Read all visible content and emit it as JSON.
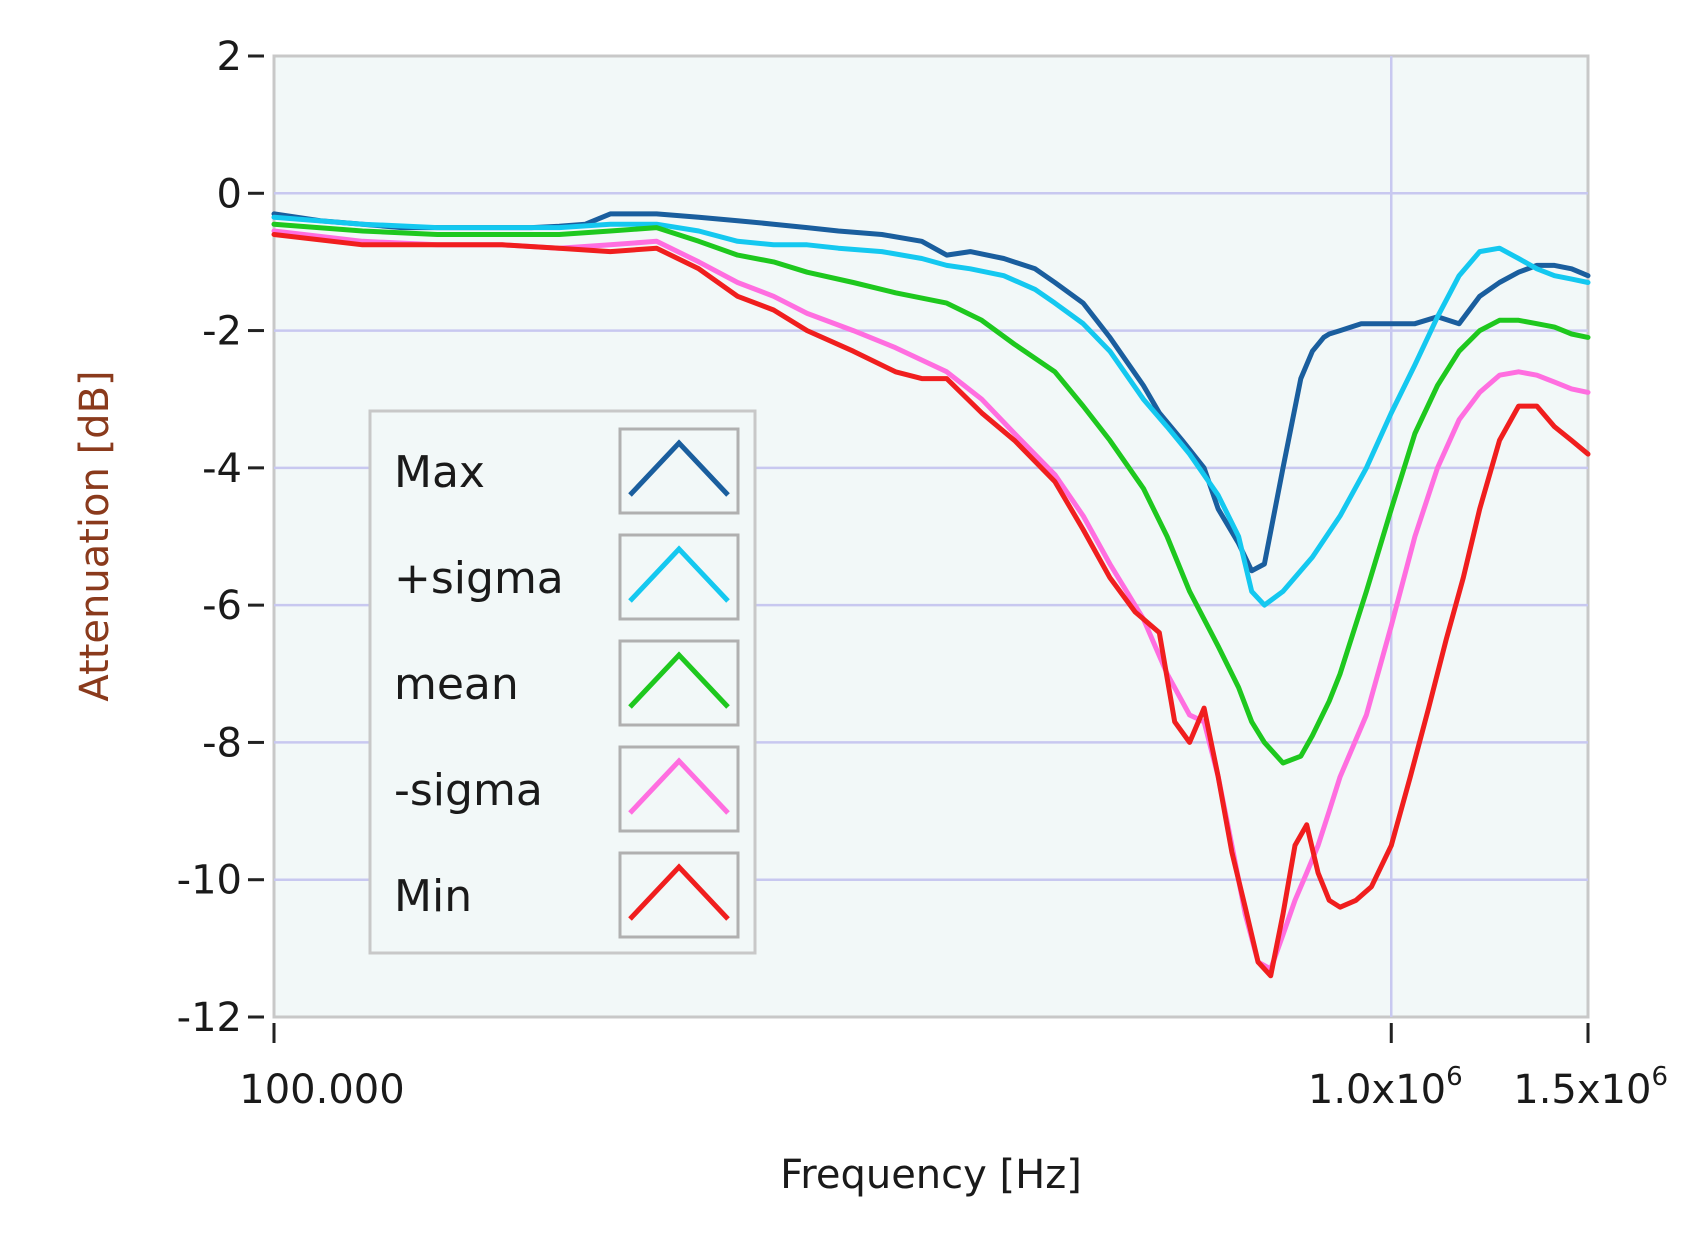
{
  "chart_data": {
    "type": "line",
    "title": "",
    "xlabel": "Frequency [Hz]",
    "ylabel": "Attenuation [dB]",
    "x_scale": "log",
    "xlim": [
      100000,
      1500000
    ],
    "ylim": [
      -12,
      2
    ],
    "x_ticks": [
      {
        "value": 100000,
        "label": "100.000",
        "base": "",
        "exp": ""
      },
      {
        "value": 1000000,
        "label": "",
        "base": "1.0x10",
        "exp": "6"
      },
      {
        "value": 1500000,
        "label": "",
        "base": "1.5x10",
        "exp": "6"
      }
    ],
    "y_ticks": [
      {
        "value": 2,
        "label": "2"
      },
      {
        "value": 0,
        "label": "0"
      },
      {
        "value": -2,
        "label": "-2"
      },
      {
        "value": -4,
        "label": "-4"
      },
      {
        "value": -6,
        "label": "-6"
      },
      {
        "value": -8,
        "label": "-8"
      },
      {
        "value": -10,
        "label": "-10"
      },
      {
        "value": -12,
        "label": "-12"
      }
    ],
    "grid": true,
    "legend_position": "left-center",
    "plot_background": "#f2f8f8",
    "grid_color": "#c8c8f0",
    "series": [
      {
        "name": "Max",
        "color": "#1a5e9e",
        "x": [
          100000,
          110000,
          120000,
          130000,
          140000,
          150000,
          160000,
          170000,
          180000,
          190000,
          200000,
          220000,
          240000,
          260000,
          280000,
          300000,
          320000,
          350000,
          380000,
          400000,
          420000,
          450000,
          480000,
          500000,
          530000,
          560000,
          600000,
          620000,
          650000,
          680000,
          700000,
          730000,
          750000,
          770000,
          800000,
          830000,
          850000,
          870000,
          880000,
          900000,
          920000,
          940000,
          960000,
          1000000,
          1050000,
          1100000,
          1150000,
          1200000,
          1250000,
          1300000,
          1350000,
          1400000,
          1450000,
          1500000
        ],
        "values": [
          -0.3,
          -0.4,
          -0.45,
          -0.5,
          -0.5,
          -0.5,
          -0.5,
          -0.5,
          -0.48,
          -0.45,
          -0.3,
          -0.3,
          -0.35,
          -0.4,
          -0.45,
          -0.5,
          -0.55,
          -0.6,
          -0.7,
          -0.9,
          -0.85,
          -0.95,
          -1.1,
          -1.3,
          -1.6,
          -2.1,
          -2.8,
          -3.2,
          -3.6,
          -4.0,
          -4.6,
          -5.1,
          -5.5,
          -5.4,
          -4.0,
          -2.7,
          -2.3,
          -2.1,
          -2.05,
          -2.0,
          -1.95,
          -1.9,
          -1.9,
          -1.9,
          -1.9,
          -1.8,
          -1.9,
          -1.5,
          -1.3,
          -1.15,
          -1.05,
          -1.05,
          -1.1,
          -1.2
        ]
      },
      {
        "name": "+sigma",
        "color": "#14c8f0",
        "x": [
          100000,
          120000,
          140000,
          160000,
          180000,
          200000,
          220000,
          240000,
          260000,
          280000,
          300000,
          320000,
          350000,
          380000,
          400000,
          420000,
          450000,
          480000,
          500000,
          530000,
          560000,
          600000,
          630000,
          660000,
          700000,
          730000,
          750000,
          770000,
          800000,
          850000,
          900000,
          950000,
          1000000,
          1050000,
          1100000,
          1150000,
          1200000,
          1250000,
          1300000,
          1350000,
          1400000,
          1450000,
          1500000
        ],
        "values": [
          -0.35,
          -0.45,
          -0.5,
          -0.5,
          -0.5,
          -0.45,
          -0.45,
          -0.55,
          -0.7,
          -0.75,
          -0.75,
          -0.8,
          -0.85,
          -0.95,
          -1.05,
          -1.1,
          -1.2,
          -1.4,
          -1.6,
          -1.9,
          -2.3,
          -3.0,
          -3.4,
          -3.8,
          -4.4,
          -5.0,
          -5.8,
          -6.0,
          -5.8,
          -5.3,
          -4.7,
          -4.0,
          -3.2,
          -2.5,
          -1.8,
          -1.2,
          -0.85,
          -0.8,
          -0.95,
          -1.1,
          -1.2,
          -1.25,
          -1.3
        ]
      },
      {
        "name": "mean",
        "color": "#1ec81e",
        "x": [
          100000,
          120000,
          140000,
          160000,
          180000,
          200000,
          220000,
          240000,
          260000,
          280000,
          300000,
          330000,
          360000,
          400000,
          430000,
          460000,
          500000,
          530000,
          560000,
          600000,
          630000,
          660000,
          700000,
          730000,
          750000,
          770000,
          800000,
          830000,
          850000,
          880000,
          900000,
          950000,
          1000000,
          1050000,
          1100000,
          1150000,
          1200000,
          1250000,
          1300000,
          1350000,
          1400000,
          1450000,
          1500000
        ],
        "values": [
          -0.45,
          -0.55,
          -0.6,
          -0.6,
          -0.6,
          -0.55,
          -0.5,
          -0.7,
          -0.9,
          -1.0,
          -1.15,
          -1.3,
          -1.45,
          -1.6,
          -1.85,
          -2.2,
          -2.6,
          -3.1,
          -3.6,
          -4.3,
          -5.0,
          -5.8,
          -6.6,
          -7.2,
          -7.7,
          -8.0,
          -8.3,
          -8.2,
          -7.9,
          -7.4,
          -7.0,
          -5.8,
          -4.6,
          -3.5,
          -2.8,
          -2.3,
          -2.0,
          -1.85,
          -1.85,
          -1.9,
          -1.95,
          -2.05,
          -2.1
        ]
      },
      {
        "name": "-sigma",
        "color": "#ff6ee0",
        "x": [
          100000,
          120000,
          140000,
          160000,
          180000,
          200000,
          220000,
          240000,
          260000,
          280000,
          300000,
          330000,
          360000,
          400000,
          430000,
          460000,
          500000,
          530000,
          560000,
          600000,
          630000,
          660000,
          680000,
          700000,
          720000,
          740000,
          760000,
          780000,
          800000,
          820000,
          840000,
          860000,
          880000,
          900000,
          950000,
          1000000,
          1050000,
          1100000,
          1150000,
          1200000,
          1250000,
          1300000,
          1350000,
          1400000,
          1450000,
          1500000
        ],
        "values": [
          -0.55,
          -0.7,
          -0.75,
          -0.75,
          -0.8,
          -0.75,
          -0.7,
          -1.0,
          -1.3,
          -1.5,
          -1.75,
          -2.0,
          -2.25,
          -2.6,
          -3.0,
          -3.5,
          -4.1,
          -4.7,
          -5.4,
          -6.2,
          -7.0,
          -7.6,
          -7.7,
          -8.5,
          -9.5,
          -10.5,
          -11.2,
          -11.3,
          -10.8,
          -10.3,
          -9.9,
          -9.5,
          -9.0,
          -8.5,
          -7.6,
          -6.3,
          -5.0,
          -4.0,
          -3.3,
          -2.9,
          -2.65,
          -2.6,
          -2.65,
          -2.75,
          -2.85,
          -2.9
        ]
      },
      {
        "name": "Min",
        "color": "#f01e1e",
        "x": [
          100000,
          120000,
          140000,
          160000,
          180000,
          200000,
          220000,
          240000,
          260000,
          280000,
          300000,
          330000,
          360000,
          380000,
          400000,
          430000,
          460000,
          500000,
          530000,
          560000,
          590000,
          620000,
          640000,
          660000,
          680000,
          700000,
          720000,
          740000,
          760000,
          780000,
          800000,
          820000,
          840000,
          860000,
          880000,
          900000,
          930000,
          960000,
          1000000,
          1040000,
          1080000,
          1120000,
          1160000,
          1200000,
          1250000,
          1300000,
          1350000,
          1400000,
          1450000,
          1500000
        ],
        "values": [
          -0.6,
          -0.75,
          -0.75,
          -0.75,
          -0.8,
          -0.85,
          -0.8,
          -1.1,
          -1.5,
          -1.7,
          -2.0,
          -2.3,
          -2.6,
          -2.7,
          -2.7,
          -3.2,
          -3.6,
          -4.2,
          -4.9,
          -5.6,
          -6.1,
          -6.4,
          -7.7,
          -8.0,
          -7.5,
          -8.5,
          -9.6,
          -10.4,
          -11.2,
          -11.4,
          -10.5,
          -9.5,
          -9.2,
          -9.9,
          -10.3,
          -10.4,
          -10.3,
          -10.1,
          -9.5,
          -8.5,
          -7.5,
          -6.5,
          -5.6,
          -4.6,
          -3.6,
          -3.1,
          -3.1,
          -3.4,
          -3.6,
          -3.8
        ]
      }
    ]
  }
}
